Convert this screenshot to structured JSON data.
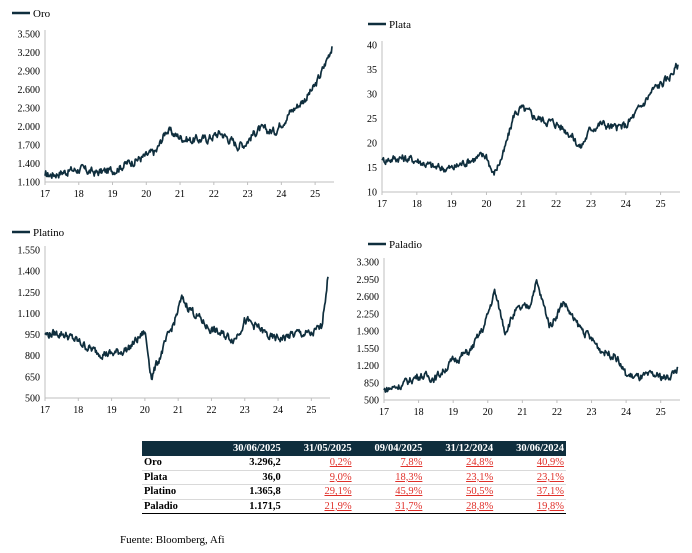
{
  "chart_data": [
    {
      "type": "line",
      "title": "",
      "series": [
        {
          "name": "Oro",
          "x": [
            2017.0,
            2017.5,
            2018.0,
            2018.5,
            2019.0,
            2019.5,
            2020.0,
            2020.3,
            2020.6,
            2020.9,
            2021.3,
            2021.8,
            2022.2,
            2022.7,
            2022.9,
            2023.3,
            2023.8,
            2024.2,
            2024.7,
            2025.0,
            2025.25,
            2025.5
          ],
          "values": [
            1200,
            1260,
            1310,
            1250,
            1290,
            1420,
            1520,
            1600,
            1950,
            1850,
            1780,
            1800,
            1900,
            1700,
            1720,
            1950,
            1920,
            2200,
            2450,
            2650,
            2950,
            3300
          ]
        }
      ],
      "xlim": [
        17,
        25.5
      ],
      "ylim": [
        1100,
        3500
      ],
      "yticks": [
        "1.100",
        "1.400",
        "1.700",
        "2.000",
        "2.300",
        "2.600",
        "2.900",
        "3.200",
        "3.500"
      ],
      "xticks": [
        "17",
        "18",
        "19",
        "20",
        "21",
        "22",
        "23",
        "24",
        "25"
      ],
      "legend": "top-left"
    },
    {
      "type": "line",
      "title": "",
      "series": [
        {
          "name": "Plata",
          "x": [
            2017.0,
            2017.5,
            2018.0,
            2018.5,
            2019.0,
            2019.5,
            2020.0,
            2020.2,
            2020.5,
            2020.8,
            2021.0,
            2021.5,
            2022.0,
            2022.4,
            2022.7,
            2023.0,
            2023.3,
            2023.7,
            2024.0,
            2024.4,
            2024.8,
            2025.2,
            2025.5
          ],
          "values": [
            16.5,
            17.0,
            16.5,
            15.0,
            14.8,
            16.5,
            17.5,
            13.5,
            18.0,
            26.0,
            27.0,
            25.0,
            24.0,
            22.0,
            19.0,
            23.0,
            24.0,
            23.0,
            23.5,
            27.0,
            31.0,
            33.0,
            36.0
          ]
        }
      ],
      "xlim": [
        17,
        25.5
      ],
      "ylim": [
        10,
        40
      ],
      "yticks": [
        "10",
        "15",
        "20",
        "25",
        "30",
        "35",
        "40"
      ],
      "xticks": [
        "17",
        "18",
        "19",
        "20",
        "21",
        "22",
        "23",
        "24",
        "25"
      ],
      "legend": "top-left"
    },
    {
      "type": "line",
      "title": "",
      "series": [
        {
          "name": "Platino",
          "x": [
            2017.0,
            2017.5,
            2018.0,
            2018.5,
            2019.0,
            2019.5,
            2020.0,
            2020.2,
            2020.5,
            2020.9,
            2021.1,
            2021.5,
            2021.9,
            2022.3,
            2022.7,
            2023.0,
            2023.4,
            2023.8,
            2024.2,
            2024.6,
            2025.0,
            2025.3,
            2025.5
          ],
          "values": [
            950,
            960,
            900,
            830,
            810,
            850,
            970,
            650,
            820,
            1050,
            1200,
            1100,
            1000,
            950,
            920,
            1050,
            1000,
            920,
            930,
            960,
            950,
            1000,
            1360
          ]
        }
      ],
      "xlim": [
        17,
        25.5
      ],
      "ylim": [
        500,
        1550
      ],
      "yticks": [
        "500",
        "650",
        "800",
        "950",
        "1.100",
        "1.250",
        "1.400",
        "1.550"
      ],
      "xticks": [
        "17",
        "18",
        "19",
        "20",
        "21",
        "22",
        "23",
        "24",
        "25"
      ],
      "legend": "top-left"
    },
    {
      "type": "line",
      "title": "",
      "series": [
        {
          "name": "Paladio",
          "x": [
            2017.0,
            2017.5,
            2018.0,
            2018.5,
            2019.0,
            2019.5,
            2019.9,
            2020.2,
            2020.5,
            2020.8,
            2021.2,
            2021.4,
            2021.8,
            2022.2,
            2022.5,
            2022.9,
            2023.3,
            2023.7,
            2024.0,
            2024.4,
            2024.8,
            2025.2,
            2025.5
          ],
          "values": [
            700,
            800,
            1000,
            950,
            1300,
            1500,
            2000,
            2700,
            1900,
            2300,
            2400,
            2900,
            2000,
            2500,
            2100,
            1800,
            1500,
            1400,
            1000,
            950,
            1000,
            950,
            1150
          ]
        }
      ],
      "xlim": [
        17,
        25.5
      ],
      "ylim": [
        500,
        3300
      ],
      "yticks": [
        "500",
        "850",
        "1.200",
        "1.550",
        "1.900",
        "2.250",
        "2.600",
        "2.950",
        "3.300"
      ],
      "xticks": [
        "17",
        "18",
        "19",
        "20",
        "21",
        "22",
        "23",
        "24",
        "25"
      ],
      "legend": "top-left"
    }
  ],
  "table": {
    "headers": [
      "",
      "30/06/2025",
      "31/05/2025",
      "09/04/2025",
      "31/12/2024",
      "30/06/2024"
    ],
    "rows": [
      {
        "name": "Oro",
        "price": "3.296,2",
        "changes": [
          "0,2%",
          "7,8%",
          "24,8%",
          "40,9%"
        ]
      },
      {
        "name": "Plata",
        "price": "36,0",
        "changes": [
          "9,0%",
          "18,3%",
          "23,1%",
          "23,1%"
        ]
      },
      {
        "name": "Platino",
        "price": "1.365,8",
        "changes": [
          "29,1%",
          "45,9%",
          "50,5%",
          "37,1%"
        ]
      },
      {
        "name": "Paladio",
        "price": "1.171,5",
        "changes": [
          "21,9%",
          "31,7%",
          "28,8%",
          "19,8%"
        ]
      }
    ]
  },
  "source": "Fuente: Bloomberg, Afi",
  "colors": {
    "series": "#0f2e3d",
    "negative": "#e0302a",
    "header_bg": "#0f2e3d"
  }
}
